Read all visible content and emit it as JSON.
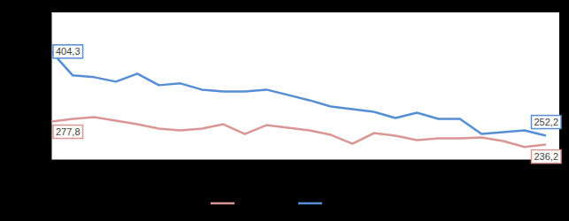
{
  "chart_data": {
    "type": "line",
    "categories": [
      null,
      null,
      null,
      null,
      null,
      null,
      null,
      null,
      null,
      null,
      null,
      null,
      null,
      null,
      null,
      null,
      null,
      null,
      null,
      null,
      null,
      null,
      null,
      null
    ],
    "series": [
      {
        "color": "#d99694",
        "values": [
          277.8,
          282.6,
          285.8,
          279.4,
          273.0,
          265.0,
          261.8,
          265.0,
          273.0,
          255.4,
          271.4,
          266.6,
          261.8,
          253.8,
          237.8,
          257.0,
          252.2,
          244.2,
          247.4,
          247.4,
          249.0,
          242.6,
          232.0,
          236.2
        ],
        "value_labels": [
          "277,8",
          null,
          null,
          null,
          null,
          null,
          null,
          null,
          null,
          null,
          null,
          null,
          null,
          null,
          null,
          null,
          null,
          null,
          null,
          null,
          null,
          null,
          null,
          "236,2"
        ]
      },
      {
        "color": "#558ed5",
        "values": [
          404.3,
          361.1,
          357.9,
          349.9,
          364.3,
          343.5,
          346.7,
          335.5,
          332.3,
          332.3,
          335.5,
          325.9,
          316.3,
          305.1,
          300.3,
          295.5,
          284.3,
          293.9,
          282.7,
          282.7,
          255.4,
          258.6,
          261.8,
          252.2
        ],
        "value_labels": [
          "404,3",
          null,
          null,
          null,
          null,
          null,
          null,
          null,
          null,
          null,
          null,
          null,
          null,
          null,
          null,
          null,
          null,
          null,
          null,
          null,
          null,
          null,
          null,
          "252,2"
        ]
      }
    ],
    "ylim": [
      210,
      475
    ],
    "data_labels": true,
    "tick_labels": false,
    "legend": "bottom"
  }
}
